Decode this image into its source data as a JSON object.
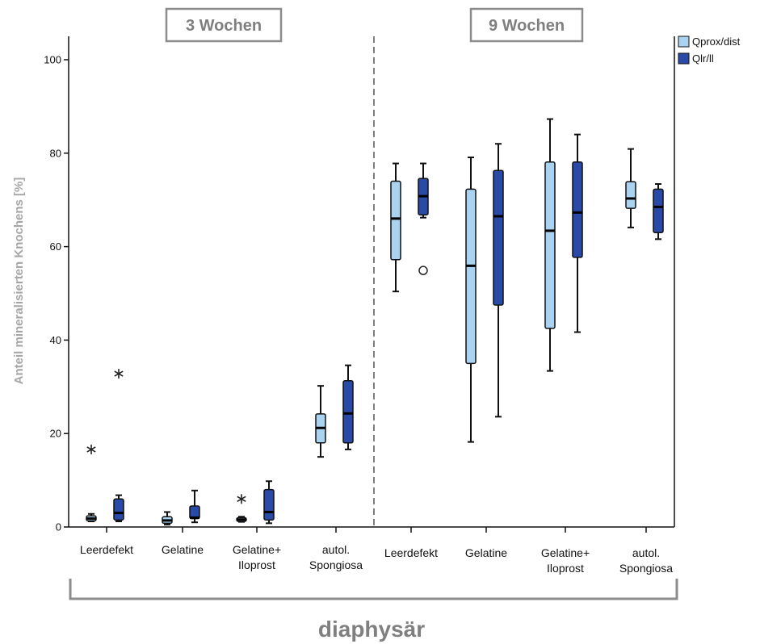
{
  "chart_data": {
    "type": "box",
    "ylabel": "Anteil mineralisierten Knochens [%]",
    "xlabel": "diaphysär",
    "ylim": [
      0,
      100
    ],
    "yticks": [
      0,
      20,
      40,
      60,
      80,
      100
    ],
    "legend": {
      "placement": "top-right",
      "entries": [
        {
          "name": "Qprox/dist",
          "color": "#a9d3f0"
        },
        {
          "name": "Qlr/ll",
          "color": "#2a4aa8"
        }
      ]
    },
    "series": [
      {
        "name": "Qprox/dist",
        "color": "#a9d3f0"
      },
      {
        "name": "Qlr/ll",
        "color": "#2a4aa8"
      }
    ],
    "panels": [
      {
        "title": "3 Wochen",
        "categories": [
          {
            "label": [
              "Leerdefekt"
            ],
            "boxes": [
              {
                "series": 0,
                "min": 1.2,
                "q1": 1.3,
                "median": 1.8,
                "q3": 2.4,
                "max": 2.8,
                "extremes": [
                  16.6
                ],
                "outliers": []
              },
              {
                "series": 1,
                "min": 1.2,
                "q1": 1.5,
                "median": 3.0,
                "q3": 6.0,
                "max": 6.8,
                "extremes": [
                  32.8
                ],
                "outliers": []
              }
            ]
          },
          {
            "label": [
              "Gelatine"
            ],
            "boxes": [
              {
                "series": 0,
                "min": 0.5,
                "q1": 0.8,
                "median": 1.4,
                "q3": 2.2,
                "max": 3.2,
                "extremes": [],
                "outliers": []
              },
              {
                "series": 1,
                "min": 1.0,
                "q1": 1.8,
                "median": 2.0,
                "q3": 4.5,
                "max": 7.8,
                "extremes": [],
                "outliers": []
              }
            ]
          },
          {
            "label": [
              "Gelatine+",
              "Iloprost"
            ],
            "boxes": [
              {
                "series": 0,
                "min": 1.1,
                "q1": 1.2,
                "median": 1.6,
                "q3": 2.0,
                "max": 2.2,
                "extremes": [
                  6.0
                ],
                "outliers": []
              },
              {
                "series": 1,
                "min": 0.8,
                "q1": 1.5,
                "median": 3.2,
                "q3": 8.0,
                "max": 9.8,
                "extremes": [],
                "outliers": []
              }
            ]
          },
          {
            "label": [
              "autol.",
              "Spongiosa"
            ],
            "boxes": [
              {
                "series": 0,
                "min": 15.0,
                "q1": 18.0,
                "median": 21.2,
                "q3": 24.2,
                "max": 30.2,
                "extremes": [],
                "outliers": []
              },
              {
                "series": 1,
                "min": 16.6,
                "q1": 18.0,
                "median": 24.3,
                "q3": 31.3,
                "max": 34.6,
                "extremes": [],
                "outliers": []
              }
            ]
          }
        ]
      },
      {
        "title": "9 Wochen",
        "categories": [
          {
            "label": [
              "Leerdefekt"
            ],
            "boxes": [
              {
                "series": 0,
                "min": 50.4,
                "q1": 57.2,
                "median": 66.0,
                "q3": 74.0,
                "max": 77.8,
                "extremes": [],
                "outliers": []
              },
              {
                "series": 1,
                "min": 66.2,
                "q1": 66.8,
                "median": 70.8,
                "q3": 74.6,
                "max": 77.8,
                "extremes": [],
                "outliers": [
                  54.9
                ]
              }
            ]
          },
          {
            "label": [
              "Gelatine"
            ],
            "boxes": [
              {
                "series": 0,
                "min": 18.2,
                "q1": 35.0,
                "median": 55.9,
                "q3": 72.3,
                "max": 79.1,
                "extremes": [],
                "outliers": []
              },
              {
                "series": 1,
                "min": 23.6,
                "q1": 47.5,
                "median": 66.5,
                "q3": 76.3,
                "max": 82.0,
                "extremes": [],
                "outliers": []
              }
            ]
          },
          {
            "label": [
              "Gelatine+",
              "Iloprost"
            ],
            "boxes": [
              {
                "series": 0,
                "min": 33.4,
                "q1": 42.5,
                "median": 63.4,
                "q3": 78.1,
                "max": 87.3,
                "extremes": [],
                "outliers": []
              },
              {
                "series": 1,
                "min": 41.7,
                "q1": 57.7,
                "median": 67.3,
                "q3": 78.1,
                "max": 84.0,
                "extremes": [],
                "outliers": []
              }
            ]
          },
          {
            "label": [
              "autol.",
              "Spongiosa"
            ],
            "boxes": [
              {
                "series": 0,
                "min": 64.1,
                "q1": 68.2,
                "median": 70.3,
                "q3": 73.9,
                "max": 80.9,
                "extremes": [],
                "outliers": []
              },
              {
                "series": 1,
                "min": 61.6,
                "q1": 63.0,
                "median": 68.5,
                "q3": 72.3,
                "max": 73.4,
                "extremes": [],
                "outliers": []
              }
            ]
          }
        ]
      }
    ]
  }
}
